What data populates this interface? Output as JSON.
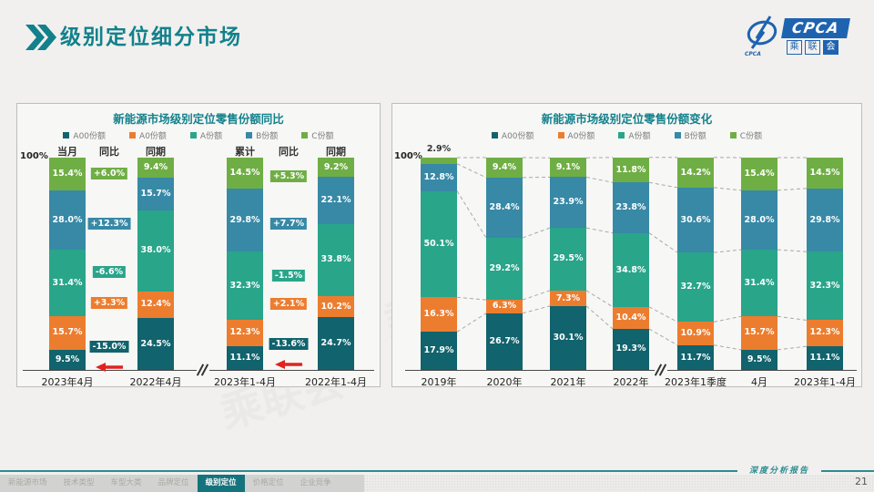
{
  "page": {
    "title": "级别定位细分市场",
    "page_number": "21",
    "footer_note": "深度分析报告",
    "logo": {
      "main": "CPCA",
      "sub": "乘联会",
      "emblem_text": "CPCA"
    }
  },
  "nav": {
    "tabs": [
      {
        "label": "新能源市场",
        "active": false
      },
      {
        "label": "技术类型",
        "active": false
      },
      {
        "label": "车型大类",
        "active": false
      },
      {
        "label": "品牌定位",
        "active": false
      },
      {
        "label": "级别定位",
        "active": true
      },
      {
        "label": "价格定位",
        "active": false
      },
      {
        "label": "企业竞争",
        "active": false
      }
    ]
  },
  "colors": {
    "accent_teal": "#12818c",
    "series": {
      "A00": "#11636d",
      "A0": "#ec7d2f",
      "A": "#29a58a",
      "B": "#3789a6",
      "C": "#6fae44"
    },
    "arrow_red": "#e0231e",
    "connector_gray": "#a9a9a9"
  },
  "legend": [
    "A00份额",
    "A0份额",
    "A份额",
    "B份额",
    "C份额"
  ],
  "chart_data": [
    {
      "type": "bar",
      "stacked": true,
      "unit": "%",
      "ylim": [
        0,
        100
      ],
      "title": "新能源市场级别定位零售份额同比",
      "y_axis_label": "100%",
      "series_names": [
        "A00份额",
        "A0份额",
        "A份额",
        "B份额",
        "C份额"
      ],
      "groups": [
        {
          "headers": [
            "当月",
            "同比",
            "同期"
          ],
          "bars": [
            {
              "label": "2023年4月",
              "values": [
                9.5,
                15.7,
                31.4,
                28.0,
                15.4
              ]
            },
            {
              "label": "2022年4月",
              "values": [
                24.5,
                12.4,
                38.0,
                15.7,
                9.4
              ]
            }
          ],
          "diffs": [
            {
              "series": "A00",
              "text": "-15.0%",
              "pos": 10.7,
              "arrow": true
            },
            {
              "series": "A0",
              "text": "+3.3%",
              "pos": 31.3
            },
            {
              "series": "A",
              "text": "-6.6%",
              "pos": 45.9
            },
            {
              "series": "B",
              "text": "+12.3%",
              "pos": 68.7
            },
            {
              "series": "C",
              "text": "+6.0%",
              "pos": 92.3
            }
          ]
        },
        {
          "headers": [
            "累计",
            "同比",
            "同期"
          ],
          "bars": [
            {
              "label": "2023年1-4月",
              "values": [
                11.1,
                12.3,
                32.3,
                29.8,
                14.5
              ]
            },
            {
              "label": "2022年1-4月",
              "values": [
                24.7,
                10.2,
                33.8,
                22.1,
                9.2
              ]
            }
          ],
          "diffs": [
            {
              "series": "A00",
              "text": "-13.6%",
              "pos": 12.0,
              "arrow": true
            },
            {
              "series": "A0",
              "text": "+2.1%",
              "pos": 30.9
            },
            {
              "series": "A",
              "text": "-1.5%",
              "pos": 44.2
            },
            {
              "series": "B",
              "text": "+7.7%",
              "pos": 68.7
            },
            {
              "series": "C",
              "text": "+5.3%",
              "pos": 91.0
            }
          ]
        }
      ]
    },
    {
      "type": "bar",
      "stacked": true,
      "unit": "%",
      "ylim": [
        0,
        100
      ],
      "title": "新能源市场级别定位零售份额变化",
      "y_axis_label": "100%",
      "categories": [
        "2019年",
        "2020年",
        "2021年",
        "2022年",
        "2023年1季度",
        "4月",
        "2023年1-4月"
      ],
      "axis_break_after_index": 3,
      "connector_style": "dashed",
      "legend_position": "top",
      "series": [
        {
          "name": "A00份额",
          "values": [
            17.9,
            26.7,
            30.1,
            19.3,
            11.7,
            9.5,
            11.1
          ]
        },
        {
          "name": "A0份额",
          "values": [
            16.3,
            6.3,
            7.3,
            10.4,
            10.9,
            15.7,
            12.3
          ]
        },
        {
          "name": "A份额",
          "values": [
            50.1,
            29.2,
            29.5,
            34.8,
            32.7,
            31.4,
            32.3
          ]
        },
        {
          "name": "B份额",
          "values": [
            12.8,
            28.4,
            23.9,
            23.8,
            30.6,
            28.0,
            29.8
          ]
        },
        {
          "name": "C份额",
          "values": [
            2.9,
            9.4,
            9.1,
            11.8,
            14.2,
            15.4,
            14.5
          ]
        }
      ]
    }
  ]
}
